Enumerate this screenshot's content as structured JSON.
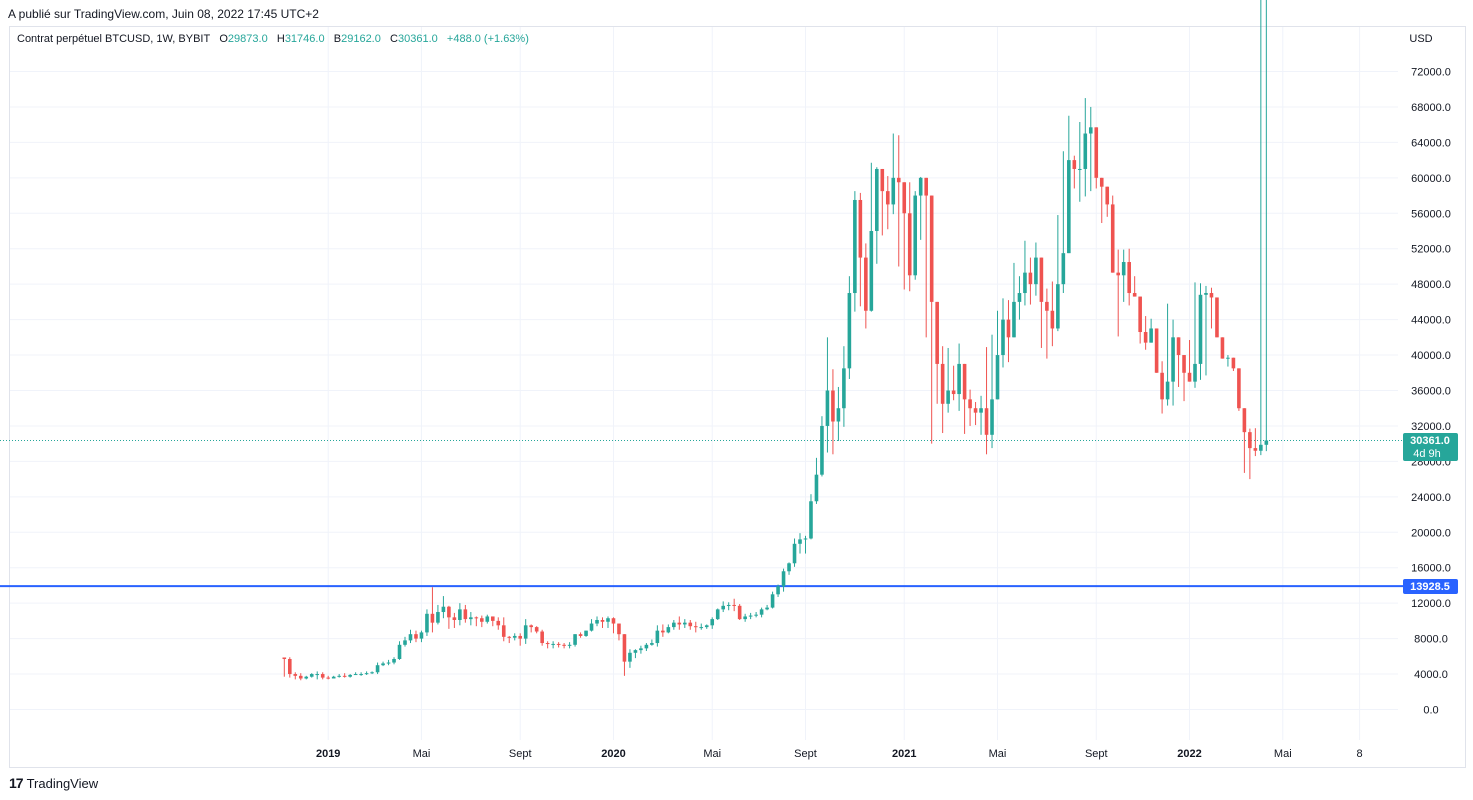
{
  "header": {
    "published": "A publié sur TradingView.com, Juin 08, 2022 17:45 UTC+2"
  },
  "legend": {
    "symbol": "Contrat perpétuel BTCUSD, 1W, BYBIT",
    "o_label": "O",
    "o": "29873.0",
    "h_label": "H",
    "h": "31746.0",
    "b_label": "B",
    "b": "29162.0",
    "c_label": "C",
    "c": "30361.0",
    "change": "+488.0 (+1.63%)"
  },
  "footer": {
    "logo": "17",
    "brand": "TradingView"
  },
  "colors": {
    "up": "#26a69a",
    "down": "#ef5350",
    "level": "#2962ff",
    "grid": "#f0f3fa",
    "text": "#131722"
  },
  "chart_data": {
    "type": "candlestick",
    "currency": "USD",
    "ylim": [
      -2000,
      76000
    ],
    "y_ticks": [
      0,
      4000,
      8000,
      12000,
      16000,
      20000,
      24000,
      28000,
      32000,
      36000,
      40000,
      44000,
      48000,
      52000,
      56000,
      60000,
      64000,
      68000,
      72000
    ],
    "y_tick_labels": [
      "0.0",
      "4000.0",
      "8000.0",
      "12000.0",
      "16000.0",
      "20000.0",
      "24000.0",
      "28000.0",
      "32000.0",
      "36000.0",
      "40000.0",
      "44000.0",
      "48000.0",
      "52000.0",
      "56000.0",
      "60000.0",
      "64000.0",
      "68000.0",
      "72000.0"
    ],
    "x_ticks": [
      {
        "label": "2019",
        "week": 0,
        "bold": true
      },
      {
        "label": "Mai",
        "week": 17,
        "bold": false
      },
      {
        "label": "Sept",
        "week": 35,
        "bold": false
      },
      {
        "label": "2020",
        "week": 52,
        "bold": true
      },
      {
        "label": "Mai",
        "week": 70,
        "bold": false
      },
      {
        "label": "Sept",
        "week": 87,
        "bold": false
      },
      {
        "label": "2021",
        "week": 105,
        "bold": true
      },
      {
        "label": "Mai",
        "week": 122,
        "bold": false
      },
      {
        "label": "Sept",
        "week": 140,
        "bold": false
      },
      {
        "label": "2022",
        "week": 157,
        "bold": true
      },
      {
        "label": "Mai",
        "week": 174,
        "bold": false
      },
      {
        "label": "8",
        "week": 188,
        "bold": false
      }
    ],
    "week_range": [
      -58,
      195
    ],
    "horizontal_level": {
      "value": 13928.5,
      "label": "13928.5"
    },
    "last_price": {
      "value": 30361.0,
      "label": "30361.0",
      "countdown": "4d 9h"
    },
    "first_week": -8,
    "closes": [
      5700,
      4000,
      3800,
      3500,
      3700,
      4000,
      4000,
      3600,
      3500,
      3700,
      3800,
      3700,
      3900,
      4000,
      4000,
      4100,
      4200,
      5000,
      5200,
      5300,
      5700,
      7300,
      7800,
      8500,
      8000,
      8700,
      10800,
      9800,
      11000,
      11600,
      10400,
      10100,
      11300,
      10200,
      10400,
      10300,
      9900,
      10500,
      10000,
      9500,
      8200,
      8100,
      8300,
      8000,
      9500,
      9300,
      8800,
      7500,
      7400,
      7400,
      7300,
      7200,
      7300,
      8500,
      8300,
      8900,
      9700,
      10100,
      9900,
      10300,
      9700,
      8500,
      5400,
      6400,
      6700,
      6900,
      7300,
      7500,
      8900,
      8700,
      9300,
      9800,
      9600,
      9800,
      9400,
      9300,
      9300,
      9500,
      10200,
      11300,
      11700,
      11800,
      11700,
      10200,
      10500,
      10600,
      10700,
      11300,
      11500,
      13000,
      13900,
      15600,
      16500,
      18700,
      19200,
      19300,
      23500,
      26500,
      32000,
      36000,
      32500,
      34000,
      38500,
      47000,
      57500,
      51000,
      45000,
      54000,
      61000,
      58500,
      57000,
      60000,
      59500,
      56000,
      49000,
      58000,
      60000,
      58000,
      46000,
      39000,
      34500,
      36000,
      35600,
      39000,
      35000,
      34000,
      33500,
      34000,
      31000,
      35000,
      40000,
      44000,
      42000,
      46000,
      47000,
      49300,
      48000,
      51000,
      46000,
      45000,
      43000,
      48000,
      51500,
      62000,
      61000,
      61000,
      65000,
      65700,
      60000,
      59000,
      57000,
      49300,
      49000,
      50500,
      47000,
      46600,
      42600,
      41400,
      43000,
      38000,
      35000,
      37000,
      42000,
      40000,
      38000,
      37000,
      39000,
      46800,
      47000,
      46500,
      42000,
      39600,
      39700,
      38500,
      34000,
      31300,
      29500,
      29200,
      29873,
      30361
    ],
    "highs": [
      5800,
      5900,
      4200,
      4100,
      3800,
      4100,
      4300,
      4200,
      3800,
      3800,
      4000,
      4100,
      4000,
      4200,
      4200,
      4300,
      4300,
      5300,
      5400,
      5600,
      5900,
      7700,
      8200,
      9000,
      8900,
      8900,
      11300,
      13800,
      11800,
      12800,
      11700,
      10900,
      12000,
      11800,
      11000,
      10500,
      10600,
      10700,
      10500,
      10400,
      10400,
      8300,
      8600,
      8600,
      10200,
      9600,
      9400,
      9000,
      7700,
      7700,
      7600,
      7500,
      7600,
      8500,
      8700,
      8900,
      10200,
      10500,
      10400,
      10500,
      10400,
      9200,
      8000,
      6800,
      6800,
      7200,
      7500,
      7900,
      9500,
      9600,
      9600,
      10100,
      10500,
      10200,
      10100,
      9900,
      9700,
      9600,
      10400,
      11400,
      12200,
      12100,
      12500,
      11900,
      10800,
      10900,
      11000,
      11500,
      11800,
      13300,
      14100,
      15900,
      16600,
      19300,
      19900,
      19600,
      24300,
      28400,
      33100,
      42000,
      38400,
      36400,
      41000,
      48900,
      58500,
      58300,
      52600,
      61700,
      61200,
      60800,
      60200,
      65000,
      64800,
      58000,
      59500,
      58500,
      60100,
      56800,
      45800,
      42500,
      41000,
      40800,
      38800,
      41300,
      36600,
      36100,
      34700,
      35400,
      40900,
      42300,
      45000,
      46400,
      46200,
      50400,
      48900,
      52900,
      51000,
      52700,
      48900,
      47500,
      48300,
      55800,
      63000,
      67000,
      62500,
      66300,
      69000,
      68000,
      60900,
      59500,
      59000,
      58000,
      51900,
      51900,
      52000,
      48900,
      43500,
      44400,
      44100,
      38900,
      39300,
      45800,
      44000,
      39900,
      39700,
      41700,
      48200,
      48100,
      47800,
      47600,
      42500,
      41700,
      40000,
      35600,
      32500,
      31900,
      31700,
      31746
    ],
    "lows": [
      3700,
      3600,
      3400,
      3300,
      3400,
      3600,
      3400,
      3400,
      3400,
      3500,
      3600,
      3600,
      3600,
      3900,
      3800,
      3900,
      4000,
      4000,
      4900,
      5000,
      5100,
      5600,
      7100,
      7500,
      7600,
      7600,
      8300,
      8700,
      9600,
      10300,
      9100,
      9200,
      9500,
      9800,
      9500,
      9400,
      9300,
      9700,
      9400,
      9000,
      7700,
      7500,
      7800,
      7200,
      7400,
      8700,
      8600,
      7200,
      6900,
      6900,
      7000,
      6900,
      6900,
      7100,
      8100,
      8200,
      8800,
      9400,
      9200,
      9200,
      8600,
      7800,
      3800,
      4700,
      5800,
      6300,
      6600,
      7200,
      7100,
      8200,
      8600,
      9000,
      9000,
      9200,
      9000,
      8700,
      9000,
      9100,
      9100,
      10100,
      11000,
      11200,
      11100,
      10100,
      9900,
      10200,
      10400,
      10400,
      11200,
      11400,
      12700,
      13300,
      15200,
      16100,
      17600,
      17600,
      19200,
      23200,
      26300,
      29000,
      28800,
      30300,
      31900,
      37300,
      44900,
      45500,
      43000,
      44900,
      50300,
      53500,
      54200,
      55900,
      50000,
      47400,
      47200,
      48500,
      53000,
      42000,
      30000,
      34500,
      31200,
      33500,
      34900,
      33700,
      31100,
      32000,
      32100,
      31000,
      28800,
      29500,
      36300,
      38600,
      39200,
      42800,
      44000,
      45600,
      45700,
      46700,
      40800,
      39600,
      41000,
      42700,
      47000,
      55200,
      58800,
      57300,
      57900,
      58500,
      58800,
      54900,
      55600,
      53200,
      42100,
      46000,
      45600,
      46700,
      41300,
      40600,
      41500,
      38100,
      33400,
      34300,
      34300,
      36400,
      34800,
      37100,
      36300,
      37200,
      37700,
      43000,
      44300,
      40700,
      38700,
      38200,
      33700,
      26700,
      26000,
      28600,
      28700,
      29162
    ]
  }
}
